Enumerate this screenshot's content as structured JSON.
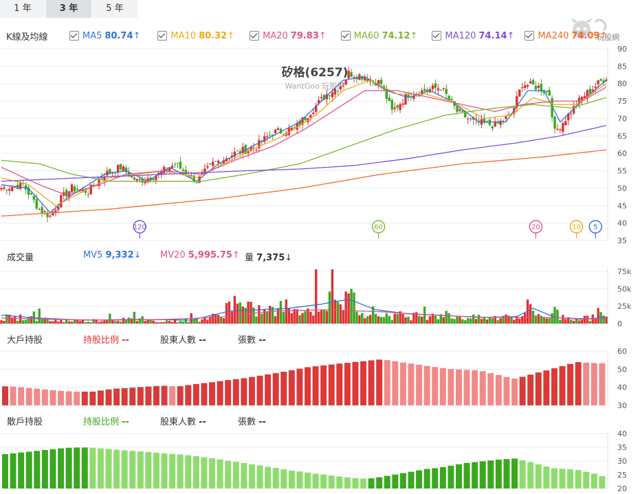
{
  "tabs": [
    {
      "label": "1 年",
      "active": false
    },
    {
      "label": "3 年",
      "active": true
    },
    {
      "label": "5 年",
      "active": false
    }
  ],
  "ma_row": {
    "title": "K線及均線",
    "items": [
      {
        "name": "MA5",
        "value": "80.74",
        "arrow": "↑",
        "color": "#2f73d8"
      },
      {
        "name": "MA10",
        "value": "80.32",
        "arrow": "↑",
        "color": "#f2a812"
      },
      {
        "name": "MA20",
        "value": "79.83",
        "arrow": "↑",
        "color": "#e0518a"
      },
      {
        "name": "MA60",
        "value": "74.12",
        "arrow": "↑",
        "color": "#7ab62e"
      },
      {
        "name": "MA120",
        "value": "74.14",
        "arrow": "↑",
        "color": "#7a4fe0"
      },
      {
        "name": "MA240",
        "value": "74.09",
        "arrow": "↑",
        "color": "#f06a2a"
      }
    ]
  },
  "logo": {
    "text": "玩股網"
  },
  "main_chart": {
    "title": "矽格(6257)",
    "subtitle": "WantGoo 玩股網",
    "y_ticks": [
      "90",
      "85",
      "80",
      "75",
      "70",
      "65",
      "60",
      "55",
      "50",
      "45",
      "40",
      "35"
    ],
    "markers": [
      {
        "label": "120",
        "color": "#7a4fe0"
      },
      {
        "label": "60",
        "color": "#7ab62e"
      },
      {
        "label": "20",
        "color": "#e0518a"
      },
      {
        "label": "10",
        "color": "#f2a812"
      },
      {
        "label": "5",
        "color": "#2f73d8"
      }
    ]
  },
  "volume": {
    "title": "成交量",
    "mv5": {
      "name": "MV5",
      "value": "9,332",
      "arrow": "↓",
      "color": "#2f73d8"
    },
    "mv20": {
      "name": "MV20",
      "value": "5,995.75",
      "arrow": "↑",
      "color": "#e0518a"
    },
    "qty": {
      "name": "量",
      "value": "7,375",
      "arrow": "↓"
    },
    "y_ticks": [
      "75k",
      "50k",
      "25k",
      "0"
    ]
  },
  "big_holders": {
    "title": "大戶持股",
    "ratio_label": "持股比例",
    "ratio_value": "--",
    "ratio_color": "#e03030",
    "count_label": "股東人數",
    "count_value": "--",
    "shares_label": "張數",
    "shares_value": "--",
    "y_ticks": [
      "60",
      "50",
      "40",
      "30"
    ]
  },
  "retail_holders": {
    "title": "散戶持股",
    "ratio_label": "持股比例",
    "ratio_value": "--",
    "ratio_color": "#3aa81e",
    "count_label": "股東人數",
    "count_value": "--",
    "shares_label": "張數",
    "shares_value": "--",
    "y_ticks": [
      "40",
      "35",
      "30",
      "25",
      "20"
    ]
  },
  "chart_data": [
    {
      "type": "candlestick",
      "title": "矽格(6257)",
      "ylim": [
        35,
        90
      ],
      "up_color": "#e03030",
      "down_color": "#3aa81e",
      "close_keyframes": [
        [
          0,
          50
        ],
        [
          8,
          51
        ],
        [
          14,
          44
        ],
        [
          18,
          42
        ],
        [
          22,
          47
        ],
        [
          26,
          50
        ],
        [
          32,
          49
        ],
        [
          38,
          54
        ],
        [
          44,
          56
        ],
        [
          50,
          52
        ],
        [
          58,
          54
        ],
        [
          64,
          57
        ],
        [
          72,
          52
        ],
        [
          78,
          57
        ],
        [
          86,
          60
        ],
        [
          94,
          62
        ],
        [
          100,
          66
        ],
        [
          108,
          67
        ],
        [
          114,
          72
        ],
        [
          120,
          77
        ],
        [
          126,
          80
        ],
        [
          128,
          83
        ],
        [
          134,
          82
        ],
        [
          140,
          80
        ],
        [
          144,
          72
        ],
        [
          150,
          77
        ],
        [
          156,
          78
        ],
        [
          162,
          79
        ],
        [
          168,
          72
        ],
        [
          174,
          69
        ],
        [
          182,
          68
        ],
        [
          188,
          71
        ],
        [
          192,
          80
        ],
        [
          198,
          79
        ],
        [
          202,
          77
        ],
        [
          204,
          66
        ],
        [
          208,
          70
        ],
        [
          214,
          76
        ],
        [
          220,
          80
        ],
        [
          223,
          82
        ]
      ],
      "series": [
        {
          "name": "MA5",
          "color": "#2f73d8",
          "keyframes": [
            [
              0,
              51
            ],
            [
              10,
              50
            ],
            [
              18,
              43
            ],
            [
              24,
              47
            ],
            [
              30,
              50
            ],
            [
              38,
              54
            ],
            [
              46,
              55
            ],
            [
              54,
              52
            ],
            [
              62,
              56
            ],
            [
              72,
              52
            ],
            [
              80,
              57
            ],
            [
              90,
              61
            ],
            [
              100,
              65
            ],
            [
              110,
              69
            ],
            [
              118,
              75
            ],
            [
              126,
              81
            ],
            [
              134,
              82
            ],
            [
              142,
              78
            ],
            [
              150,
              76
            ],
            [
              158,
              78
            ],
            [
              166,
              75
            ],
            [
              176,
              69
            ],
            [
              186,
              69
            ],
            [
              194,
              78
            ],
            [
              200,
              78
            ],
            [
              206,
              69
            ],
            [
              214,
              75
            ],
            [
              223,
              81
            ]
          ]
        },
        {
          "name": "MA10",
          "color": "#f2a812",
          "keyframes": [
            [
              0,
              53
            ],
            [
              10,
              51
            ],
            [
              20,
              45
            ],
            [
              30,
              49
            ],
            [
              40,
              53
            ],
            [
              50,
              54
            ],
            [
              60,
              55
            ],
            [
              72,
              53
            ],
            [
              82,
              57
            ],
            [
              92,
              61
            ],
            [
              104,
              65
            ],
            [
              116,
              71
            ],
            [
              126,
              78
            ],
            [
              136,
              81
            ],
            [
              146,
              77
            ],
            [
              156,
              77
            ],
            [
              166,
              75
            ],
            [
              178,
              70
            ],
            [
              188,
              71
            ],
            [
              196,
              76
            ],
            [
              204,
              74
            ],
            [
              212,
              74
            ],
            [
              223,
              80
            ]
          ]
        },
        {
          "name": "MA20",
          "color": "#e0518a",
          "keyframes": [
            [
              0,
              56
            ],
            [
              14,
              51
            ],
            [
              24,
              48
            ],
            [
              36,
              51
            ],
            [
              46,
              54
            ],
            [
              60,
              55
            ],
            [
              74,
              54
            ],
            [
              86,
              58
            ],
            [
              100,
              62
            ],
            [
              112,
              67
            ],
            [
              124,
              73
            ],
            [
              134,
              78
            ],
            [
              146,
              78
            ],
            [
              158,
              76
            ],
            [
              170,
              74
            ],
            [
              182,
              72
            ],
            [
              192,
              74
            ],
            [
              204,
              75
            ],
            [
              214,
              75
            ],
            [
              223,
              79
            ]
          ]
        },
        {
          "name": "MA60",
          "color": "#7ab62e",
          "keyframes": [
            [
              0,
              58
            ],
            [
              14,
              57
            ],
            [
              26,
              54
            ],
            [
              40,
              52
            ],
            [
              56,
              52
            ],
            [
              74,
              52
            ],
            [
              90,
              54
            ],
            [
              110,
              57
            ],
            [
              128,
              62
            ],
            [
              146,
              67
            ],
            [
              164,
              71
            ],
            [
              182,
              73
            ],
            [
              196,
              74
            ],
            [
              210,
              73
            ],
            [
              223,
              76
            ]
          ]
        },
        {
          "name": "MA120",
          "color": "#7a4fe0",
          "keyframes": [
            [
              0,
              52
            ],
            [
              30,
              53
            ],
            [
              60,
              54
            ],
            [
              90,
              55
            ],
            [
              110,
              55.5
            ],
            [
              130,
              56.5
            ],
            [
              150,
              58.5
            ],
            [
              170,
              61
            ],
            [
              190,
              63
            ],
            [
              206,
              65
            ],
            [
              223,
              68
            ]
          ]
        },
        {
          "name": "MA240",
          "color": "#f06a2a",
          "keyframes": [
            [
              0,
              42
            ],
            [
              40,
              44
            ],
            [
              80,
              47
            ],
            [
              110,
              50
            ],
            [
              140,
              54
            ],
            [
              170,
              57
            ],
            [
              200,
              59
            ],
            [
              223,
              61
            ]
          ]
        }
      ]
    },
    {
      "type": "bar",
      "title": "成交量",
      "ylim": [
        0,
        80000
      ],
      "volume_keyframes": [
        [
          0,
          11000
        ],
        [
          10,
          9000
        ],
        [
          20,
          5000
        ],
        [
          30,
          4000
        ],
        [
          40,
          7000
        ],
        [
          50,
          6000
        ],
        [
          60,
          4000
        ],
        [
          72,
          6000
        ],
        [
          80,
          12000
        ],
        [
          84,
          30000
        ],
        [
          92,
          22000
        ],
        [
          100,
          20000
        ],
        [
          106,
          28000
        ],
        [
          112,
          17000
        ],
        [
          118,
          36000
        ],
        [
          124,
          28000
        ],
        [
          128,
          42000
        ],
        [
          134,
          22000
        ],
        [
          140,
          14000
        ],
        [
          150,
          12000
        ],
        [
          160,
          16000
        ],
        [
          170,
          10000
        ],
        [
          180,
          8000
        ],
        [
          190,
          12000
        ],
        [
          194,
          22000
        ],
        [
          200,
          12000
        ],
        [
          208,
          10000
        ],
        [
          216,
          8000
        ],
        [
          220,
          18000
        ],
        [
          223,
          7375
        ]
      ],
      "series": [
        {
          "name": "MV5",
          "color": "#2f73d8",
          "keyframes": [
            [
              0,
              12000
            ],
            [
              14,
              8000
            ],
            [
              30,
              5000
            ],
            [
              50,
              6000
            ],
            [
              70,
              5000
            ],
            [
              84,
              18000
            ],
            [
              96,
              20000
            ],
            [
              106,
              22000
            ],
            [
              118,
              28000
            ],
            [
              128,
              35000
            ],
            [
              138,
              20000
            ],
            [
              150,
              14000
            ],
            [
              162,
              12000
            ],
            [
              176,
              9000
            ],
            [
              190,
              10000
            ],
            [
              196,
              22000
            ],
            [
              204,
              9000
            ],
            [
              214,
              6000
            ],
            [
              223,
              9332
            ]
          ]
        },
        {
          "name": "MV20",
          "color": "#e0518a",
          "keyframes": [
            [
              0,
              8000
            ],
            [
              20,
              6000
            ],
            [
              40,
              5000
            ],
            [
              60,
              6000
            ],
            [
              80,
              9000
            ],
            [
              100,
              18000
            ],
            [
              120,
              20000
            ],
            [
              140,
              17000
            ],
            [
              160,
              12000
            ],
            [
              180,
              9000
            ],
            [
              200,
              9000
            ],
            [
              223,
              5996
            ]
          ]
        }
      ]
    },
    {
      "type": "bar",
      "title": "大戶持股",
      "ylim": [
        30,
        60
      ],
      "values": [
        40.5,
        40.4,
        40.0,
        39.6,
        39.2,
        38.8,
        38.4,
        38.0,
        37.8,
        37.6,
        37.6,
        37.6,
        38.2,
        38.8,
        39.3,
        39.5,
        39.8,
        40.1,
        40.4,
        40.7,
        40.8,
        40.6,
        40.6,
        41.2,
        41.8,
        42.3,
        42.8,
        43.4,
        44.0,
        44.5,
        45.0,
        45.7,
        46.4,
        47.1,
        47.8,
        48.6,
        49.4,
        50.3,
        51.1,
        51.6,
        52.1,
        52.6,
        53.1,
        53.5,
        54.0,
        54.4,
        54.9,
        55.3,
        55.0,
        54.4,
        53.7,
        53.1,
        52.5,
        51.8,
        51.2,
        50.6,
        50.1,
        49.8,
        49.6,
        49.4,
        48.9,
        47.8,
        46.8,
        45.7,
        44.8,
        45.8,
        47.0,
        48.2,
        49.3,
        50.5,
        51.7,
        52.9,
        53.9,
        53.6,
        53.4,
        53.3
      ]
    },
    {
      "type": "bar",
      "title": "散戶持股",
      "ylim": [
        20,
        40
      ],
      "values": [
        32.5,
        32.8,
        33.1,
        33.4,
        33.7,
        34.0,
        34.3,
        34.6,
        34.8,
        34.9,
        34.9,
        34.8,
        34.6,
        34.4,
        34.1,
        33.9,
        33.7,
        33.5,
        33.3,
        33.0,
        32.8,
        32.6,
        32.4,
        32.1,
        31.8,
        31.4,
        31.0,
        30.6,
        30.1,
        29.7,
        29.3,
        28.8,
        28.4,
        27.9,
        27.5,
        27.0,
        26.5,
        26.2,
        25.8,
        25.4,
        25.1,
        24.7,
        24.4,
        24.1,
        23.8,
        23.6,
        23.7,
        24.1,
        24.6,
        25.1,
        25.6,
        26.1,
        26.6,
        27.1,
        27.4,
        27.8,
        28.3,
        28.8,
        29.3,
        29.6,
        29.9,
        30.2,
        30.5,
        30.7,
        30.9,
        30.3,
        29.6,
        28.8,
        28.0,
        27.4,
        27.2,
        27.0,
        26.7,
        26.1,
        25.4,
        24.5
      ]
    }
  ]
}
